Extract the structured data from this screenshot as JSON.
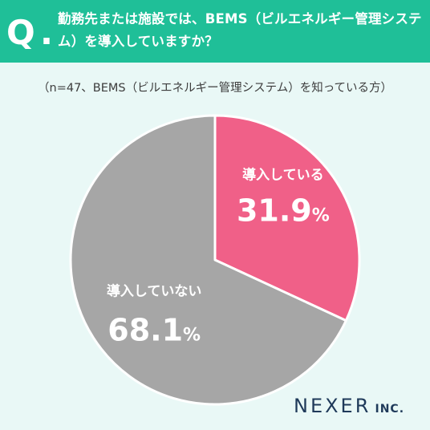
{
  "header": {
    "q_letter": "Q",
    "q_dot": ".",
    "question": "勤務先または施設では、BEMS（ビルエネルギー管理システム）を導入していますか？"
  },
  "note": "（n=47、BEMS（ビルエネルギー管理システム）を知っている方）",
  "chart_data": {
    "type": "pie",
    "title": "",
    "start": "top",
    "direction": "clockwise",
    "slices": [
      {
        "label": "導入している",
        "value": 31.9,
        "value_text": "31.9",
        "unit": "%",
        "color": "#f06088"
      },
      {
        "label": "導入していない",
        "value": 68.1,
        "value_text": "68.1",
        "unit": "%",
        "color": "#a6a6a6"
      }
    ],
    "label_color": "#ffffff",
    "separator_color": "#ffffff"
  },
  "logo": {
    "main": "NEXER",
    "suffix": "INC."
  }
}
